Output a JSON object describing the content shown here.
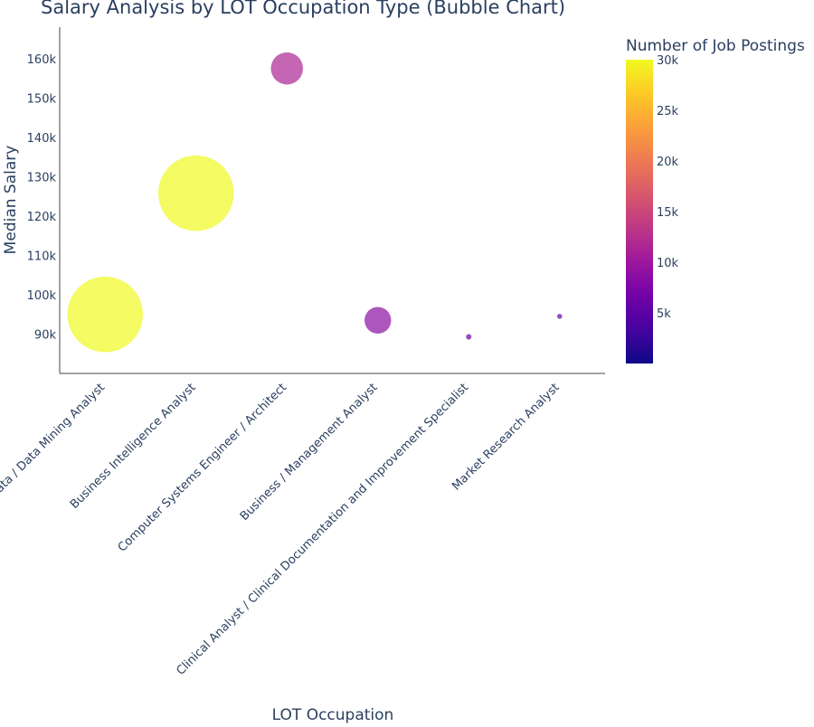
{
  "chart_data": {
    "type": "scatter",
    "subtype": "bubble",
    "title": "Salary Analysis by LOT Occupation Type (Bubble Chart)",
    "xlabel": "LOT Occupation",
    "ylabel": "Median Salary",
    "categories": [
      "Data / Data Mining Analyst",
      "Business Intelligence Analyst",
      "Computer Systems Engineer / Architect",
      "Business / Management Analyst",
      "Clinical Analyst / Clinical Documentation and Improvement Specialist",
      "Market Research Analyst"
    ],
    "values": [
      95000,
      125800,
      157500,
      93500,
      89300,
      94500
    ],
    "size": [
      30000,
      30000,
      5500,
      3800,
      180,
      60
    ],
    "color_value": [
      30000,
      30000,
      11500,
      8600,
      6000,
      5800
    ],
    "ylim": [
      80000,
      168000
    ],
    "yticks": [
      90000,
      100000,
      110000,
      120000,
      130000,
      140000,
      150000,
      160000
    ],
    "ytick_labels": [
      "90k",
      "100k",
      "110k",
      "120k",
      "130k",
      "140k",
      "150k",
      "160k"
    ],
    "colorbar": {
      "title": "Number of Job Postings",
      "min": 0,
      "max": 30000,
      "ticks": [
        5000,
        10000,
        15000,
        20000,
        25000,
        30000
      ],
      "tick_labels": [
        "5k",
        "10k",
        "15k",
        "20k",
        "25k",
        "30k"
      ],
      "colorscale": [
        "#0d0887",
        "#46039f",
        "#7201a8",
        "#9c179e",
        "#bd3786",
        "#d8576b",
        "#ed7953",
        "#fb9f3a",
        "#fdca26",
        "#f0f921"
      ]
    },
    "grid": false,
    "legend": "colorbar-right",
    "colors": {
      "axis_line": "#444444",
      "text": "#2a3f5f",
      "marker_line": "#ffffff"
    }
  }
}
